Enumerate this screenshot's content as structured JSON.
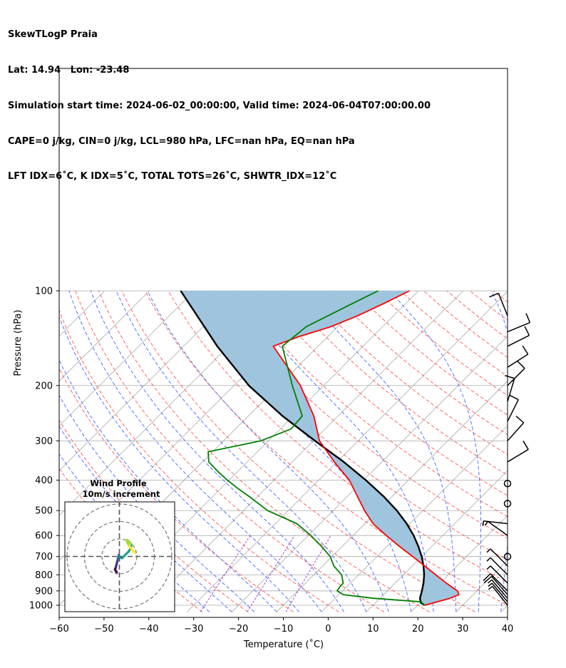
{
  "header": {
    "line1": "SkewTLogP Praia",
    "line2": "Lat: 14.94   Lon: -23.48",
    "line3": "Simulation start time: 2024-06-02_00:00:00, Valid time: 2024-06-04T07:00:00.00",
    "line4": "CAPE=0 j/kg, CIN=0 j/kg, LCL=980 hPa, LFC=nan hPa, EQ=nan hPa",
    "line5": "LFT IDX=6˚C, K IDX=5˚C, TOTAL TOTS=26˚C, SHWTR_IDX=12˚C"
  },
  "inset": {
    "title": "Wind Profile",
    "subtitle": "10m/s increment"
  },
  "colors": {
    "temperature": "#ff0000",
    "dewpoint": "#008000",
    "parcel": "#000000",
    "cape_fill": "#9ec4de",
    "dry_adiabat": "#ff5555",
    "moist_adiabat": "#4466ff",
    "mixing_ratio": "#9933cc",
    "isotherm": "#aaaaaa"
  },
  "chart_data": {
    "type": "line",
    "title": "SkewTLogP Praia",
    "xlabel": "Temperature (˚C)",
    "ylabel": "Pressure (hPa)",
    "xlim": [
      -60,
      40
    ],
    "ylim": [
      1050,
      100
    ],
    "grid": true,
    "skew_degrees": 45,
    "x_ticks": [
      -60,
      -50,
      -40,
      -30,
      -20,
      -10,
      0,
      10,
      20,
      30,
      40
    ],
    "y_ticks": [
      1000,
      900,
      800,
      700,
      600,
      500,
      400,
      300,
      200,
      100
    ],
    "series": [
      {
        "name": "Temperature",
        "pressure": [
          1000,
          975,
          950,
          925,
          900,
          850,
          800,
          750,
          700,
          650,
          600,
          550,
          500,
          450,
          400,
          350,
          300,
          250,
          200,
          150,
          140,
          130,
          120,
          110,
          100
        ],
        "temp": [
          21.5,
          23.5,
          25.6,
          26.8,
          25.6,
          21.4,
          17.2,
          12.8,
          8.0,
          2.8,
          -2.6,
          -8.2,
          -13.0,
          -17.8,
          -23.2,
          -30.6,
          -38.6,
          -45.4,
          -55.2,
          -70.0,
          -66.5,
          -61.5,
          -58.0,
          -55.0,
          -52.0
        ]
      },
      {
        "name": "Dewpoint",
        "pressure": [
          1000,
          975,
          950,
          925,
          900,
          875,
          850,
          800,
          750,
          700,
          650,
          600,
          550,
          500,
          450,
          425,
          400,
          375,
          350,
          325,
          300,
          275,
          250,
          200,
          150,
          130,
          110,
          100
        ],
        "temp": [
          21.5,
          20.0,
          8.5,
          1.0,
          -1.2,
          -1.5,
          -1.6,
          -3.8,
          -7.5,
          -10.4,
          -14.6,
          -19.4,
          -25.2,
          -34.6,
          -42.0,
          -46.2,
          -50.4,
          -54.5,
          -58.6,
          -61.0,
          -51.7,
          -47.6,
          -48.0,
          -57.0,
          -68.0,
          -67.0,
          -62.0,
          -59.0
        ]
      },
      {
        "name": "Parcel",
        "pressure": [
          1000,
          980,
          950,
          900,
          850,
          800,
          750,
          700,
          650,
          600,
          550,
          500,
          450,
          400,
          350,
          300,
          250,
          200,
          150,
          100
        ],
        "temp": [
          21.5,
          20.0,
          18.9,
          17.7,
          16.3,
          14.6,
          12.5,
          10.0,
          7.0,
          3.5,
          -0.7,
          -5.8,
          -12.0,
          -19.5,
          -28.5,
          -39.6,
          -52.4,
          -66.7,
          -82.5,
          -103.0
        ]
      }
    ],
    "wind_barbs": [
      {
        "pressure": 1000,
        "u": -2.0,
        "v": 2.5
      },
      {
        "pressure": 975,
        "u": -2.5,
        "v": 3.0
      },
      {
        "pressure": 950,
        "u": -3.0,
        "v": 3.5
      },
      {
        "pressure": 925,
        "u": -3.5,
        "v": 4.0
      },
      {
        "pressure": 900,
        "u": -4.0,
        "v": 4.0
      },
      {
        "pressure": 850,
        "u": -3.5,
        "v": 3.5
      },
      {
        "pressure": 800,
        "u": -3.0,
        "v": 3.0
      },
      {
        "pressure": 750,
        "u": -2.5,
        "v": 2.5
      },
      {
        "pressure": 700,
        "u": 0.0,
        "v": 0.0
      },
      {
        "pressure": 600,
        "u": -3.5,
        "v": 2.5
      },
      {
        "pressure": 550,
        "u": -4.5,
        "v": 0.5
      },
      {
        "pressure": 475,
        "u": 0.0,
        "v": 0.0
      },
      {
        "pressure": 410,
        "u": 0.0,
        "v": 0.0
      },
      {
        "pressure": 350,
        "u": 5.0,
        "v": 3.0
      },
      {
        "pressure": 300,
        "u": 4.0,
        "v": 4.5
      },
      {
        "pressure": 260,
        "u": 2.5,
        "v": 5.0
      },
      {
        "pressure": 225,
        "u": 1.5,
        "v": 5.0
      },
      {
        "pressure": 200,
        "u": 4.5,
        "v": 4.5
      },
      {
        "pressure": 175,
        "u": 5.5,
        "v": 3.5
      },
      {
        "pressure": 150,
        "u": 6.0,
        "v": 3.0
      },
      {
        "pressure": 135,
        "u": 6.0,
        "v": 2.5
      },
      {
        "pressure": 120,
        "u": -2.0,
        "v": 5.0
      }
    ],
    "hodograph": {
      "increment_ms": 10,
      "rings": 3,
      "points_u": [
        -1.5,
        -2.0,
        -2.5,
        -2.0,
        -1.5,
        -1.0,
        -0.5,
        -0.3,
        -0.2,
        0.0,
        1.5,
        3.5,
        5.5,
        6.5,
        7.0,
        6.5,
        5.0,
        4.0,
        5.5,
        7.5,
        9.0
      ],
      "points_v": [
        -9.0,
        -8.5,
        -7.5,
        -6.0,
        -4.0,
        -2.0,
        0.0,
        1.0,
        0.5,
        -0.5,
        -1.0,
        1.0,
        3.0,
        5.0,
        6.5,
        7.5,
        9.0,
        9.5,
        6.0,
        3.5,
        2.0
      ]
    }
  }
}
